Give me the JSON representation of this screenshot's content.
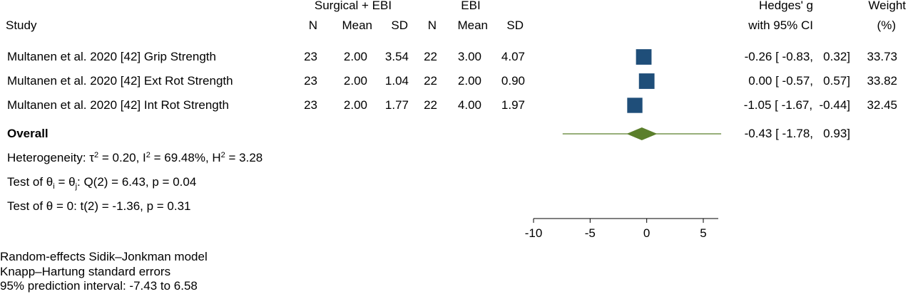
{
  "headers": {
    "group1": "Surgical + EBI",
    "group2": "EBI",
    "study": "Study",
    "n": "N",
    "mean": "Mean",
    "sd": "SD",
    "hedges": "Hedges' g",
    "ci": "with 95% CI",
    "weight": "Weight",
    "weight_unit": "(%)"
  },
  "rows": [
    {
      "study": "Multanen et al. 2020 [42] Grip Strength",
      "n1": "23",
      "mean1": "2.00",
      "sd1": "3.54",
      "n2": "22",
      "mean2": "3.00",
      "sd2": "4.07",
      "ci_text": "-0.26 [ -0.83,   0.32]",
      "weight": "33.73"
    },
    {
      "study": "Multanen et al. 2020 [42] Ext Rot Strength",
      "n1": "23",
      "mean1": "2.00",
      "sd1": "1.04",
      "n2": "22",
      "mean2": "2.00",
      "sd2": "0.90",
      "ci_text": "0.00 [ -0.57,   0.57]",
      "weight": "33.82"
    },
    {
      "study": "Multanen et al. 2020 [42] Int Rot Strength",
      "n1": "23",
      "mean1": "2.00",
      "sd1": "1.77",
      "n2": "22",
      "mean2": "4.00",
      "sd2": "1.97",
      "ci_text": "-1.05 [ -1.67,  -0.44]",
      "weight": "32.45"
    }
  ],
  "overall": {
    "label": "Overall",
    "ci_text": "-0.43 [ -1.78,   0.93]"
  },
  "stats": {
    "het_prefix": "Heterogeneity: τ",
    "het_tau_sup": "2",
    "het_mid": " = 0.20, I",
    "het_i_sup": "2",
    "het_mid2": " = 69.48%, H",
    "het_h_sup": "2",
    "het_end": " = 3.28",
    "q_prefix": "Test of θ",
    "q_sub1": "i",
    "q_mid": " = θ",
    "q_sub2": "j",
    "q_end": ": Q(2) = 6.43, p = 0.04",
    "theta_test": "Test of θ = 0: t(2) = -1.36, p = 0.31"
  },
  "footnotes": [
    "Random-effects Sidik–Jonkman model",
    "Knapp–Hartung standard errors",
    "95% prediction interval: -7.43 to 6.58"
  ],
  "colors": {
    "square": "#1f4e79",
    "diamond": "#5b7f2b",
    "line": "#5b7f2b"
  },
  "chart_data": {
    "type": "forest",
    "xlim": [
      -10,
      7
    ],
    "xticks": [
      -10,
      -5,
      0,
      5
    ],
    "studies": [
      {
        "name": "Multanen et al. 2020 [42] Grip Strength",
        "g": -0.26,
        "lo": -0.83,
        "hi": 0.32,
        "weight": 33.73
      },
      {
        "name": "Multanen et al. 2020 [42] Ext Rot Strength",
        "g": 0.0,
        "lo": -0.57,
        "hi": 0.57,
        "weight": 33.82
      },
      {
        "name": "Multanen et al. 2020 [42] Int Rot Strength",
        "g": -1.05,
        "lo": -1.67,
        "hi": -0.44,
        "weight": 32.45
      }
    ],
    "overall": {
      "g": -0.43,
      "lo": -1.78,
      "hi": 0.93,
      "pi_lo": -7.43,
      "pi_hi": 6.58
    }
  }
}
